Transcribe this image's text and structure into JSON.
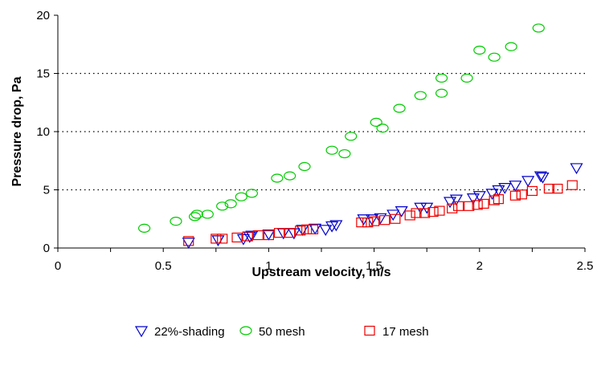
{
  "chart_data": {
    "type": "scatter",
    "title": "",
    "xlabel": "Upstream velocity, m/s",
    "ylabel": "Pressure drop, Pa",
    "xlim": [
      0,
      2.5
    ],
    "ylim": [
      0,
      20
    ],
    "xticks": [
      0,
      0.5,
      1,
      1.5,
      2,
      2.5
    ],
    "xtick_labels": [
      "0",
      "0.5",
      "1",
      "1.5",
      "2",
      "2.5"
    ],
    "yticks": [
      0,
      5,
      10,
      15,
      20
    ],
    "ytick_labels": [
      "0",
      "5",
      "10",
      "15",
      "20"
    ],
    "grid": "horizontal dotted at 5, 10, 15",
    "legend_position": "bottom",
    "series": [
      {
        "name": "22%-shading",
        "marker": "triangle-down",
        "color": "#0000cc",
        "points": [
          [
            0.62,
            0.5
          ],
          [
            0.76,
            0.7
          ],
          [
            0.88,
            0.8
          ],
          [
            0.91,
            1.0
          ],
          [
            0.92,
            1.1
          ],
          [
            1.0,
            1.2
          ],
          [
            1.07,
            1.3
          ],
          [
            1.12,
            1.3
          ],
          [
            1.16,
            1.6
          ],
          [
            1.22,
            1.7
          ],
          [
            1.27,
            1.6
          ],
          [
            1.3,
            1.9
          ],
          [
            1.32,
            2.0
          ],
          [
            1.45,
            2.5
          ],
          [
            1.49,
            2.5
          ],
          [
            1.53,
            2.6
          ],
          [
            1.59,
            2.9
          ],
          [
            1.63,
            3.2
          ],
          [
            1.72,
            3.5
          ],
          [
            1.75,
            3.5
          ],
          [
            1.86,
            4.0
          ],
          [
            1.89,
            4.2
          ],
          [
            1.97,
            4.3
          ],
          [
            2.0,
            4.5
          ],
          [
            2.06,
            4.7
          ],
          [
            2.09,
            5.0
          ],
          [
            2.12,
            5.2
          ],
          [
            2.17,
            5.4
          ],
          [
            2.23,
            5.8
          ],
          [
            2.29,
            6.2
          ],
          [
            2.3,
            6.1
          ],
          [
            2.46,
            6.9
          ]
        ]
      },
      {
        "name": "50 mesh",
        "marker": "circle",
        "color": "#00cc00",
        "points": [
          [
            0.41,
            1.7
          ],
          [
            0.56,
            2.3
          ],
          [
            0.65,
            2.7
          ],
          [
            0.66,
            2.9
          ],
          [
            0.71,
            2.9
          ],
          [
            0.78,
            3.6
          ],
          [
            0.82,
            3.8
          ],
          [
            0.87,
            4.4
          ],
          [
            0.92,
            4.7
          ],
          [
            1.04,
            6.0
          ],
          [
            1.1,
            6.2
          ],
          [
            1.17,
            7.0
          ],
          [
            1.3,
            8.4
          ],
          [
            1.36,
            8.1
          ],
          [
            1.39,
            9.6
          ],
          [
            1.51,
            10.8
          ],
          [
            1.54,
            10.3
          ],
          [
            1.62,
            12.0
          ],
          [
            1.72,
            13.1
          ],
          [
            1.82,
            14.6
          ],
          [
            1.82,
            13.3
          ],
          [
            1.94,
            14.6
          ],
          [
            2.0,
            17.0
          ],
          [
            2.07,
            16.4
          ],
          [
            2.15,
            17.3
          ],
          [
            2.28,
            18.9
          ]
        ]
      },
      {
        "name": "17 mesh",
        "marker": "square",
        "color": "#ee0000",
        "points": [
          [
            0.62,
            0.6
          ],
          [
            0.75,
            0.8
          ],
          [
            0.78,
            0.8
          ],
          [
            0.85,
            0.9
          ],
          [
            0.9,
            1.0
          ],
          [
            0.95,
            1.1
          ],
          [
            1.0,
            1.1
          ],
          [
            1.05,
            1.3
          ],
          [
            1.1,
            1.3
          ],
          [
            1.15,
            1.5
          ],
          [
            1.18,
            1.6
          ],
          [
            1.21,
            1.6
          ],
          [
            1.44,
            2.2
          ],
          [
            1.47,
            2.2
          ],
          [
            1.5,
            2.3
          ],
          [
            1.55,
            2.4
          ],
          [
            1.6,
            2.5
          ],
          [
            1.67,
            2.8
          ],
          [
            1.7,
            3.0
          ],
          [
            1.74,
            3.0
          ],
          [
            1.78,
            3.1
          ],
          [
            1.81,
            3.2
          ],
          [
            1.87,
            3.4
          ],
          [
            1.9,
            3.6
          ],
          [
            1.95,
            3.6
          ],
          [
            1.99,
            3.7
          ],
          [
            2.02,
            3.8
          ],
          [
            2.07,
            4.1
          ],
          [
            2.09,
            4.2
          ],
          [
            2.17,
            4.5
          ],
          [
            2.2,
            4.6
          ],
          [
            2.25,
            4.9
          ],
          [
            2.33,
            5.1
          ],
          [
            2.37,
            5.1
          ],
          [
            2.44,
            5.4
          ]
        ]
      }
    ]
  }
}
